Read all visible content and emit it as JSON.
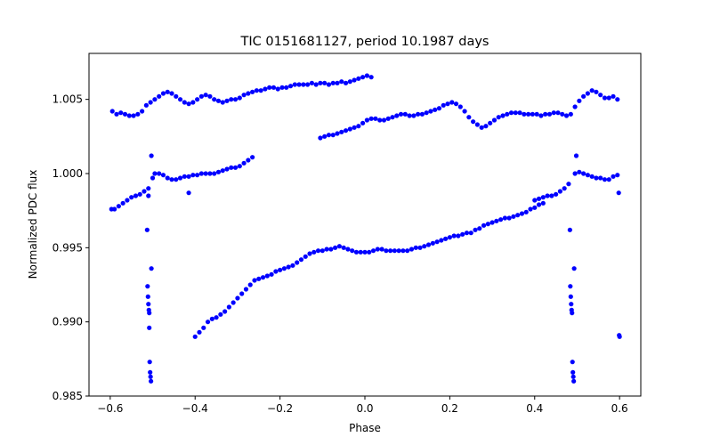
{
  "chart_data": {
    "type": "scatter",
    "title": "TIC 0151681127, period 10.1987 days",
    "xlabel": "Phase",
    "ylabel": "Normalized PDC flux",
    "xlim": [
      -0.65,
      0.65
    ],
    "ylim": [
      0.985,
      1.0081
    ],
    "xticks": [
      -0.6,
      -0.4,
      -0.2,
      0.0,
      0.2,
      0.4,
      0.6
    ],
    "xtick_labels": [
      "−0.6",
      "−0.4",
      "−0.2",
      "0.0",
      "0.2",
      "0.4",
      "0.6"
    ],
    "yticks": [
      0.985,
      0.99,
      0.995,
      1.0,
      1.005
    ],
    "ytick_labels": [
      "0.985",
      "0.990",
      "0.995",
      "1.000",
      "1.005"
    ],
    "grid": false,
    "marker_color": "#0000ff",
    "series": [
      {
        "name": "upper-band",
        "points": [
          [
            -0.595,
            1.0042
          ],
          [
            -0.585,
            1.004
          ],
          [
            -0.575,
            1.0041
          ],
          [
            -0.565,
            1.004
          ],
          [
            -0.555,
            1.0039
          ],
          [
            -0.545,
            1.0039
          ],
          [
            -0.535,
            1.004
          ],
          [
            -0.525,
            1.0042
          ],
          [
            -0.515,
            1.0046
          ],
          [
            -0.505,
            1.0048
          ],
          [
            -0.495,
            1.005
          ],
          [
            -0.485,
            1.0052
          ],
          [
            -0.475,
            1.0054
          ],
          [
            -0.465,
            1.0055
          ],
          [
            -0.455,
            1.0054
          ],
          [
            -0.445,
            1.0052
          ],
          [
            -0.435,
            1.005
          ],
          [
            -0.425,
            1.0048
          ],
          [
            -0.415,
            1.0047
          ],
          [
            -0.405,
            1.0048
          ],
          [
            -0.395,
            1.005
          ],
          [
            -0.385,
            1.0052
          ],
          [
            -0.375,
            1.0053
          ],
          [
            -0.365,
            1.0052
          ],
          [
            -0.355,
            1.005
          ],
          [
            -0.345,
            1.0049
          ],
          [
            -0.335,
            1.0048
          ],
          [
            -0.325,
            1.0049
          ],
          [
            -0.315,
            1.005
          ],
          [
            -0.305,
            1.005
          ],
          [
            -0.295,
            1.0051
          ],
          [
            -0.285,
            1.0053
          ],
          [
            -0.275,
            1.0054
          ],
          [
            -0.265,
            1.0055
          ],
          [
            -0.255,
            1.0056
          ],
          [
            -0.245,
            1.0056
          ],
          [
            -0.235,
            1.0057
          ],
          [
            -0.225,
            1.0058
          ],
          [
            -0.215,
            1.0058
          ],
          [
            -0.205,
            1.0057
          ],
          [
            -0.195,
            1.0058
          ],
          [
            -0.185,
            1.0058
          ],
          [
            -0.175,
            1.0059
          ],
          [
            -0.165,
            1.006
          ],
          [
            -0.155,
            1.006
          ],
          [
            -0.145,
            1.006
          ],
          [
            -0.135,
            1.006
          ],
          [
            -0.125,
            1.0061
          ],
          [
            -0.115,
            1.006
          ],
          [
            -0.105,
            1.0061
          ],
          [
            -0.095,
            1.0061
          ],
          [
            -0.085,
            1.006
          ],
          [
            -0.075,
            1.0061
          ],
          [
            -0.065,
            1.0061
          ],
          [
            -0.055,
            1.0062
          ],
          [
            -0.045,
            1.0061
          ],
          [
            -0.035,
            1.0062
          ],
          [
            -0.025,
            1.0063
          ],
          [
            -0.015,
            1.0064
          ],
          [
            -0.005,
            1.0065
          ],
          [
            0.005,
            1.0066
          ],
          [
            0.015,
            1.0065
          ],
          [
            -0.105,
            1.0024
          ],
          [
            -0.095,
            1.0025
          ],
          [
            -0.085,
            1.0026
          ],
          [
            -0.075,
            1.0026
          ],
          [
            -0.065,
            1.0027
          ],
          [
            -0.055,
            1.0028
          ],
          [
            -0.045,
            1.0029
          ],
          [
            -0.035,
            1.003
          ],
          [
            -0.025,
            1.0031
          ],
          [
            -0.015,
            1.0032
          ],
          [
            -0.005,
            1.0034
          ],
          [
            0.005,
            1.0036
          ],
          [
            0.015,
            1.0037
          ],
          [
            0.025,
            1.0037
          ],
          [
            0.035,
            1.0036
          ],
          [
            0.045,
            1.0036
          ],
          [
            0.055,
            1.0037
          ],
          [
            0.065,
            1.0038
          ],
          [
            0.075,
            1.0039
          ],
          [
            0.085,
            1.004
          ],
          [
            0.095,
            1.004
          ],
          [
            0.105,
            1.0039
          ],
          [
            0.115,
            1.0039
          ],
          [
            0.125,
            1.004
          ],
          [
            0.135,
            1.004
          ],
          [
            0.145,
            1.0041
          ],
          [
            0.155,
            1.0042
          ],
          [
            0.165,
            1.0043
          ],
          [
            0.175,
            1.0044
          ],
          [
            0.185,
            1.0046
          ],
          [
            0.195,
            1.0047
          ],
          [
            0.205,
            1.0048
          ],
          [
            0.215,
            1.0047
          ],
          [
            0.225,
            1.0045
          ],
          [
            0.235,
            1.0042
          ],
          [
            0.245,
            1.0038
          ],
          [
            0.255,
            1.0035
          ],
          [
            0.265,
            1.0033
          ],
          [
            0.275,
            1.0031
          ],
          [
            0.285,
            1.0032
          ],
          [
            0.295,
            1.0034
          ],
          [
            0.305,
            1.0036
          ],
          [
            0.315,
            1.0038
          ],
          [
            0.325,
            1.0039
          ],
          [
            0.335,
            1.004
          ],
          [
            0.345,
            1.0041
          ],
          [
            0.355,
            1.0041
          ],
          [
            0.365,
            1.0041
          ],
          [
            0.375,
            1.004
          ],
          [
            0.385,
            1.004
          ],
          [
            0.395,
            1.004
          ],
          [
            0.405,
            1.004
          ],
          [
            0.415,
            1.0039
          ],
          [
            0.425,
            1.004
          ],
          [
            0.435,
            1.004
          ],
          [
            0.445,
            1.0041
          ],
          [
            0.455,
            1.0041
          ],
          [
            0.465,
            1.004
          ],
          [
            0.475,
            1.0039
          ],
          [
            0.485,
            1.004
          ],
          [
            0.495,
            1.0045
          ],
          [
            0.505,
            1.0049
          ],
          [
            0.515,
            1.0052
          ],
          [
            0.525,
            1.0054
          ],
          [
            0.535,
            1.0056
          ],
          [
            0.545,
            1.0055
          ],
          [
            0.555,
            1.0053
          ],
          [
            0.565,
            1.0051
          ],
          [
            0.575,
            1.0051
          ],
          [
            0.585,
            1.0052
          ],
          [
            0.595,
            1.005
          ]
        ]
      },
      {
        "name": "middle-band",
        "points": [
          [
            -0.597,
            0.9976
          ],
          [
            -0.59,
            0.9976
          ],
          [
            -0.58,
            0.9978
          ],
          [
            -0.57,
            0.998
          ],
          [
            -0.56,
            0.9982
          ],
          [
            -0.55,
            0.9984
          ],
          [
            -0.54,
            0.9985
          ],
          [
            -0.53,
            0.9986
          ],
          [
            -0.52,
            0.9988
          ],
          [
            -0.51,
            0.999
          ],
          [
            -0.5,
            0.9997
          ],
          [
            -0.495,
            1.0
          ],
          [
            -0.485,
            1.0
          ],
          [
            -0.475,
            0.9999
          ],
          [
            -0.465,
            0.9997
          ],
          [
            -0.455,
            0.9996
          ],
          [
            -0.445,
            0.9996
          ],
          [
            -0.435,
            0.9997
          ],
          [
            -0.425,
            0.9998
          ],
          [
            -0.415,
            0.9998
          ],
          [
            -0.405,
            0.9999
          ],
          [
            -0.395,
            0.9999
          ],
          [
            -0.385,
            1.0
          ],
          [
            -0.375,
            1.0
          ],
          [
            -0.365,
            1.0
          ],
          [
            -0.355,
            1.0
          ],
          [
            -0.345,
            1.0001
          ],
          [
            -0.335,
            1.0002
          ],
          [
            -0.325,
            1.0003
          ],
          [
            -0.315,
            1.0004
          ],
          [
            -0.305,
            1.0004
          ],
          [
            -0.295,
            1.0005
          ],
          [
            -0.285,
            1.0007
          ],
          [
            -0.275,
            1.0009
          ],
          [
            -0.265,
            1.0011
          ],
          [
            0.4,
            0.9982
          ],
          [
            0.41,
            0.9983
          ],
          [
            0.42,
            0.9984
          ],
          [
            0.43,
            0.9985
          ],
          [
            0.44,
            0.9985
          ],
          [
            0.45,
            0.9986
          ],
          [
            0.46,
            0.9988
          ],
          [
            0.47,
            0.999
          ],
          [
            0.48,
            0.9993
          ],
          [
            0.495,
            1.0
          ],
          [
            0.505,
            1.0001
          ],
          [
            0.515,
            1.0
          ],
          [
            0.525,
            0.9999
          ],
          [
            0.535,
            0.9998
          ],
          [
            0.545,
            0.9997
          ],
          [
            0.555,
            0.9997
          ],
          [
            0.565,
            0.9996
          ],
          [
            0.575,
            0.9996
          ],
          [
            0.585,
            0.9998
          ],
          [
            0.595,
            0.9999
          ],
          [
            -0.503,
            1.0012
          ],
          [
            0.498,
            1.0012
          ],
          [
            -0.415,
            0.9987
          ],
          [
            0.598,
            0.9987
          ],
          [
            -0.51,
            0.9985
          ]
        ]
      },
      {
        "name": "lower-band",
        "points": [
          [
            -0.4,
            0.989
          ],
          [
            -0.39,
            0.9893
          ],
          [
            -0.38,
            0.9896
          ],
          [
            -0.37,
            0.99
          ],
          [
            -0.36,
            0.9902
          ],
          [
            -0.35,
            0.9903
          ],
          [
            -0.34,
            0.9905
          ],
          [
            -0.33,
            0.9907
          ],
          [
            -0.32,
            0.991
          ],
          [
            -0.31,
            0.9913
          ],
          [
            -0.3,
            0.9916
          ],
          [
            -0.29,
            0.9919
          ],
          [
            -0.28,
            0.9922
          ],
          [
            -0.27,
            0.9925
          ],
          [
            -0.26,
            0.9928
          ],
          [
            -0.25,
            0.9929
          ],
          [
            -0.24,
            0.993
          ],
          [
            -0.23,
            0.9931
          ],
          [
            -0.22,
            0.9932
          ],
          [
            -0.21,
            0.9934
          ],
          [
            -0.2,
            0.9935
          ],
          [
            -0.19,
            0.9936
          ],
          [
            -0.18,
            0.9937
          ],
          [
            -0.17,
            0.9938
          ],
          [
            -0.16,
            0.994
          ],
          [
            -0.15,
            0.9942
          ],
          [
            -0.14,
            0.9944
          ],
          [
            -0.13,
            0.9946
          ],
          [
            -0.12,
            0.9947
          ],
          [
            -0.11,
            0.9948
          ],
          [
            -0.1,
            0.9948
          ],
          [
            -0.09,
            0.9949
          ],
          [
            -0.08,
            0.9949
          ],
          [
            -0.07,
            0.995
          ],
          [
            -0.06,
            0.9951
          ],
          [
            -0.05,
            0.995
          ],
          [
            -0.04,
            0.9949
          ],
          [
            -0.03,
            0.9948
          ],
          [
            -0.02,
            0.9947
          ],
          [
            -0.01,
            0.9947
          ],
          [
            0.0,
            0.9947
          ],
          [
            0.01,
            0.9947
          ],
          [
            0.02,
            0.9948
          ],
          [
            0.03,
            0.9949
          ],
          [
            0.04,
            0.9949
          ],
          [
            0.05,
            0.9948
          ],
          [
            0.06,
            0.9948
          ],
          [
            0.07,
            0.9948
          ],
          [
            0.08,
            0.9948
          ],
          [
            0.09,
            0.9948
          ],
          [
            0.1,
            0.9948
          ],
          [
            0.11,
            0.9949
          ],
          [
            0.12,
            0.995
          ],
          [
            0.13,
            0.995
          ],
          [
            0.14,
            0.9951
          ],
          [
            0.15,
            0.9952
          ],
          [
            0.16,
            0.9953
          ],
          [
            0.17,
            0.9954
          ],
          [
            0.18,
            0.9955
          ],
          [
            0.19,
            0.9956
          ],
          [
            0.2,
            0.9957
          ],
          [
            0.21,
            0.9958
          ],
          [
            0.22,
            0.9958
          ],
          [
            0.23,
            0.9959
          ],
          [
            0.24,
            0.996
          ],
          [
            0.25,
            0.996
          ],
          [
            0.26,
            0.9962
          ],
          [
            0.27,
            0.9963
          ],
          [
            0.28,
            0.9965
          ],
          [
            0.29,
            0.9966
          ],
          [
            0.3,
            0.9967
          ],
          [
            0.31,
            0.9968
          ],
          [
            0.32,
            0.9969
          ],
          [
            0.33,
            0.997
          ],
          [
            0.34,
            0.997
          ],
          [
            0.35,
            0.9971
          ],
          [
            0.36,
            0.9972
          ],
          [
            0.37,
            0.9973
          ],
          [
            0.38,
            0.9974
          ],
          [
            0.39,
            0.9976
          ],
          [
            0.4,
            0.9977
          ],
          [
            0.41,
            0.9979
          ],
          [
            0.42,
            0.998
          ]
        ]
      },
      {
        "name": "eclipse-dips",
        "points": [
          [
            -0.513,
            0.9962
          ],
          [
            -0.512,
            0.9924
          ],
          [
            -0.511,
            0.9917
          ],
          [
            -0.51,
            0.9912
          ],
          [
            -0.509,
            0.9908
          ],
          [
            -0.508,
            0.9906
          ],
          [
            -0.508,
            0.9896
          ],
          [
            -0.507,
            0.9873
          ],
          [
            -0.506,
            0.9866
          ],
          [
            -0.505,
            0.9863
          ],
          [
            -0.504,
            0.986
          ],
          [
            -0.503,
            0.9936
          ],
          [
            0.483,
            0.9962
          ],
          [
            0.484,
            0.9924
          ],
          [
            0.485,
            0.9917
          ],
          [
            0.486,
            0.9912
          ],
          [
            0.487,
            0.9908
          ],
          [
            0.488,
            0.9906
          ],
          [
            0.489,
            0.9873
          ],
          [
            0.49,
            0.9866
          ],
          [
            0.491,
            0.9863
          ],
          [
            0.492,
            0.986
          ],
          [
            0.493,
            0.9936
          ],
          [
            0.599,
            0.9891
          ],
          [
            0.6,
            0.989
          ]
        ]
      }
    ]
  }
}
